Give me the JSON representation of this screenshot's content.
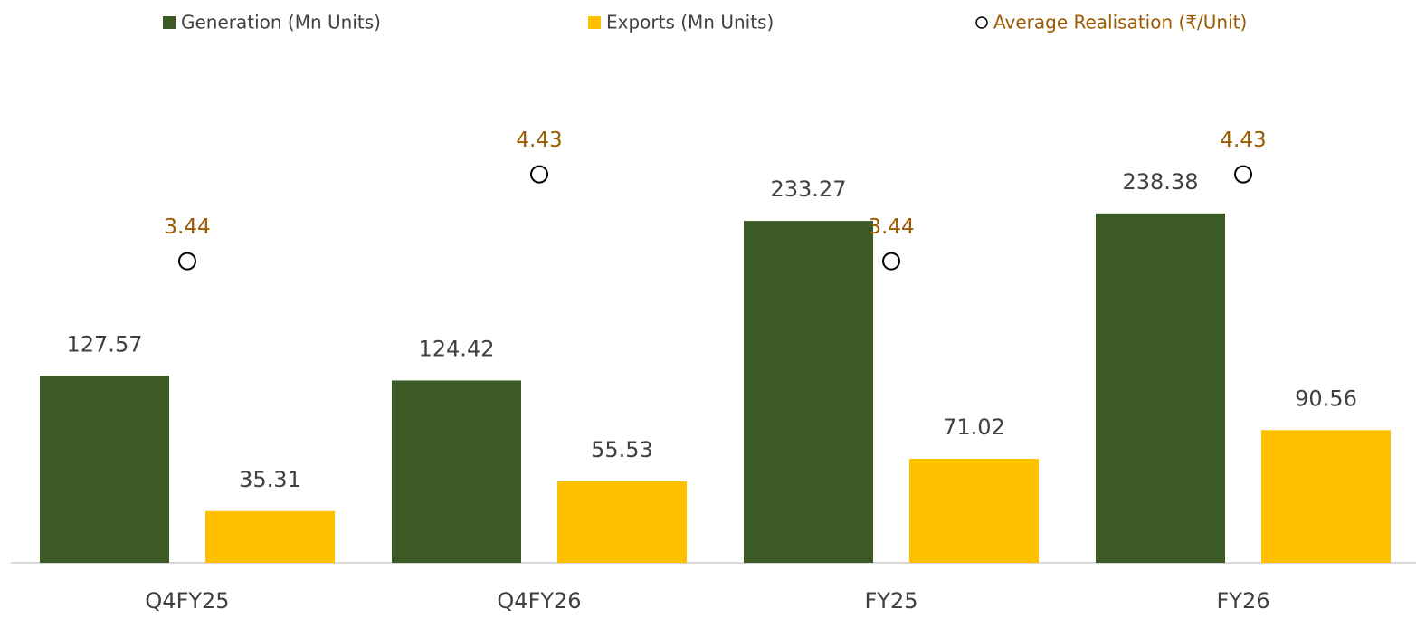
{
  "chart_data": {
    "type": "bar",
    "categories": [
      "Q4FY25",
      "Q4FY26",
      "FY25",
      "FY26"
    ],
    "series": [
      {
        "name": "Generation (Mn Units)",
        "color": "#3b5a24",
        "values": [
          127.57,
          124.42,
          233.27,
          238.38
        ]
      },
      {
        "name": "Exports (Mn Units)",
        "color": "#ffc000",
        "values": [
          35.31,
          55.53,
          71.02,
          90.56
        ]
      },
      {
        "name": "Average Realisation (₹/Unit)",
        "type": "scatter",
        "axis": "y2",
        "color": "#000000",
        "label_color": "#9c5a00",
        "values": [
          3.44,
          4.43,
          3.44,
          4.43
        ]
      }
    ],
    "ylim": [
      0,
      350
    ],
    "y2lim": [
      0,
      5.85
    ]
  }
}
